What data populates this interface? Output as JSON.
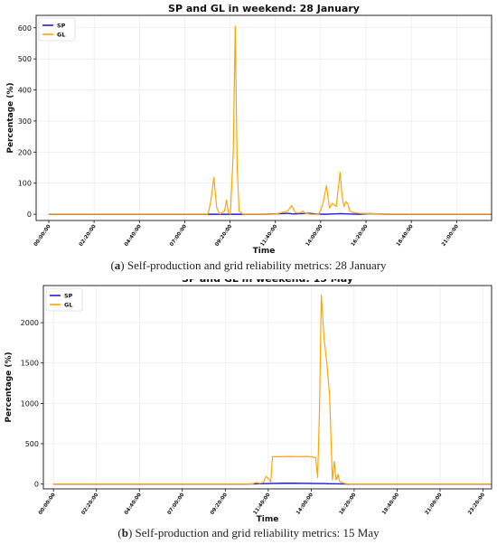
{
  "chart_data": [
    {
      "type": "line",
      "title": "SP and GL in weekend: 28 January",
      "xlabel": "Time",
      "ylabel": "Percentage (%)",
      "ylim": [
        -20,
        640
      ],
      "yticks": [
        0,
        100,
        200,
        300,
        400,
        500,
        600
      ],
      "x_tick_labels": [
        "00:00:00",
        "02:20:00",
        "04:40:00",
        "07:00:00",
        "09:20:00",
        "11:40:00",
        "14:00:00",
        "16:20:00",
        "18:40:00",
        "21:00:00"
      ],
      "grid": true,
      "legend": "top-left",
      "series": [
        {
          "name": "SP",
          "color": "#1f1fd6",
          "points": [
            [
              0,
              0
            ],
            [
              7.9,
              0
            ],
            [
              8.3,
              0
            ],
            [
              8.6,
              0
            ],
            [
              9.0,
              0
            ],
            [
              9.5,
              0
            ],
            [
              10.0,
              0
            ],
            [
              10.5,
              0
            ],
            [
              11.0,
              0
            ],
            [
              11.5,
              1
            ],
            [
              12.0,
              2
            ],
            [
              12.3,
              3
            ],
            [
              12.6,
              1
            ],
            [
              13.0,
              2
            ],
            [
              13.4,
              3
            ],
            [
              13.8,
              1
            ],
            [
              14.2,
              0
            ],
            [
              14.6,
              1
            ],
            [
              15.0,
              2
            ],
            [
              15.5,
              1
            ],
            [
              16.0,
              0
            ],
            [
              16.5,
              2
            ],
            [
              17.0,
              1
            ],
            [
              17.5,
              0
            ],
            [
              22.8,
              0
            ]
          ]
        },
        {
          "name": "GL",
          "color": "#ffa500",
          "points": [
            [
              0,
              0
            ],
            [
              8.0,
              0
            ],
            [
              8.2,
              0
            ],
            [
              8.35,
              45
            ],
            [
              8.5,
              118
            ],
            [
              8.65,
              20
            ],
            [
              8.8,
              0
            ],
            [
              9.05,
              10
            ],
            [
              9.15,
              45
            ],
            [
              9.25,
              5
            ],
            [
              9.35,
              0
            ],
            [
              9.5,
              200
            ],
            [
              9.6,
              605
            ],
            [
              9.7,
              150
            ],
            [
              9.8,
              10
            ],
            [
              10.0,
              0
            ],
            [
              11.5,
              0
            ],
            [
              11.8,
              2
            ],
            [
              12.0,
              6
            ],
            [
              12.3,
              10
            ],
            [
              12.5,
              28
            ],
            [
              12.7,
              5
            ],
            [
              12.9,
              4
            ],
            [
              13.1,
              10
            ],
            [
              13.2,
              3
            ],
            [
              13.5,
              0
            ],
            [
              13.9,
              0
            ],
            [
              14.1,
              30
            ],
            [
              14.3,
              92
            ],
            [
              14.45,
              20
            ],
            [
              14.6,
              35
            ],
            [
              14.8,
              25
            ],
            [
              14.9,
              80
            ],
            [
              15.0,
              135
            ],
            [
              15.1,
              60
            ],
            [
              15.2,
              25
            ],
            [
              15.3,
              40
            ],
            [
              15.4,
              35
            ],
            [
              15.5,
              10
            ],
            [
              15.7,
              5
            ],
            [
              16.0,
              3
            ],
            [
              16.5,
              2
            ],
            [
              17.0,
              1
            ],
            [
              17.5,
              0
            ],
            [
              22.8,
              0
            ]
          ]
        }
      ],
      "caption_label": "a",
      "caption_text": "Self-production and grid reliability metrics: 28 January"
    },
    {
      "type": "line",
      "title": "SP and GL in weekend: 15 May",
      "xlabel": "Time",
      "ylabel": "Percentage (%)",
      "ylim": [
        -60,
        2460
      ],
      "yticks": [
        0,
        500,
        1000,
        1500,
        2000
      ],
      "x_tick_labels": [
        "00:00:00",
        "02:20:00",
        "04:40:00",
        "07:00:00",
        "09:20:00",
        "11:40:00",
        "14:00:00",
        "16:20:00",
        "18:40:00",
        "21:00:00",
        "23:20:00"
      ],
      "grid": true,
      "legend": "top-left",
      "series": [
        {
          "name": "SP",
          "color": "#1f1fd6",
          "points": [
            [
              0,
              0
            ],
            [
              10.0,
              0
            ],
            [
              10.5,
              0
            ],
            [
              11.0,
              2
            ],
            [
              11.5,
              5
            ],
            [
              12.0,
              8
            ],
            [
              12.5,
              10
            ],
            [
              13.0,
              10
            ],
            [
              13.5,
              9
            ],
            [
              14.0,
              8
            ],
            [
              14.3,
              7
            ],
            [
              14.6,
              6
            ],
            [
              15.0,
              4
            ],
            [
              15.5,
              2
            ],
            [
              16.0,
              0
            ],
            [
              23.8,
              0
            ]
          ]
        },
        {
          "name": "GL",
          "color": "#ffa500",
          "points": [
            [
              0,
              0
            ],
            [
              10.5,
              0
            ],
            [
              10.8,
              0
            ],
            [
              11.0,
              20
            ],
            [
              11.2,
              8
            ],
            [
              11.4,
              20
            ],
            [
              11.55,
              95
            ],
            [
              11.7,
              60
            ],
            [
              11.8,
              25
            ],
            [
              11.9,
              340
            ],
            [
              12.3,
              338
            ],
            [
              12.8,
              342
            ],
            [
              13.3,
              340
            ],
            [
              13.8,
              342
            ],
            [
              14.1,
              335
            ],
            [
              14.25,
              320
            ],
            [
              14.35,
              80
            ],
            [
              14.45,
              900
            ],
            [
              14.55,
              2340
            ],
            [
              14.7,
              1800
            ],
            [
              14.85,
              1500
            ],
            [
              15.0,
              1100
            ],
            [
              15.15,
              50
            ],
            [
              15.25,
              280
            ],
            [
              15.35,
              50
            ],
            [
              15.45,
              120
            ],
            [
              15.55,
              30
            ],
            [
              15.7,
              15
            ],
            [
              15.85,
              5
            ],
            [
              16.1,
              0
            ],
            [
              23.8,
              0
            ]
          ]
        }
      ],
      "caption_label": "b",
      "caption_text": "Self-production and grid reliability metrics: 15 May"
    }
  ]
}
